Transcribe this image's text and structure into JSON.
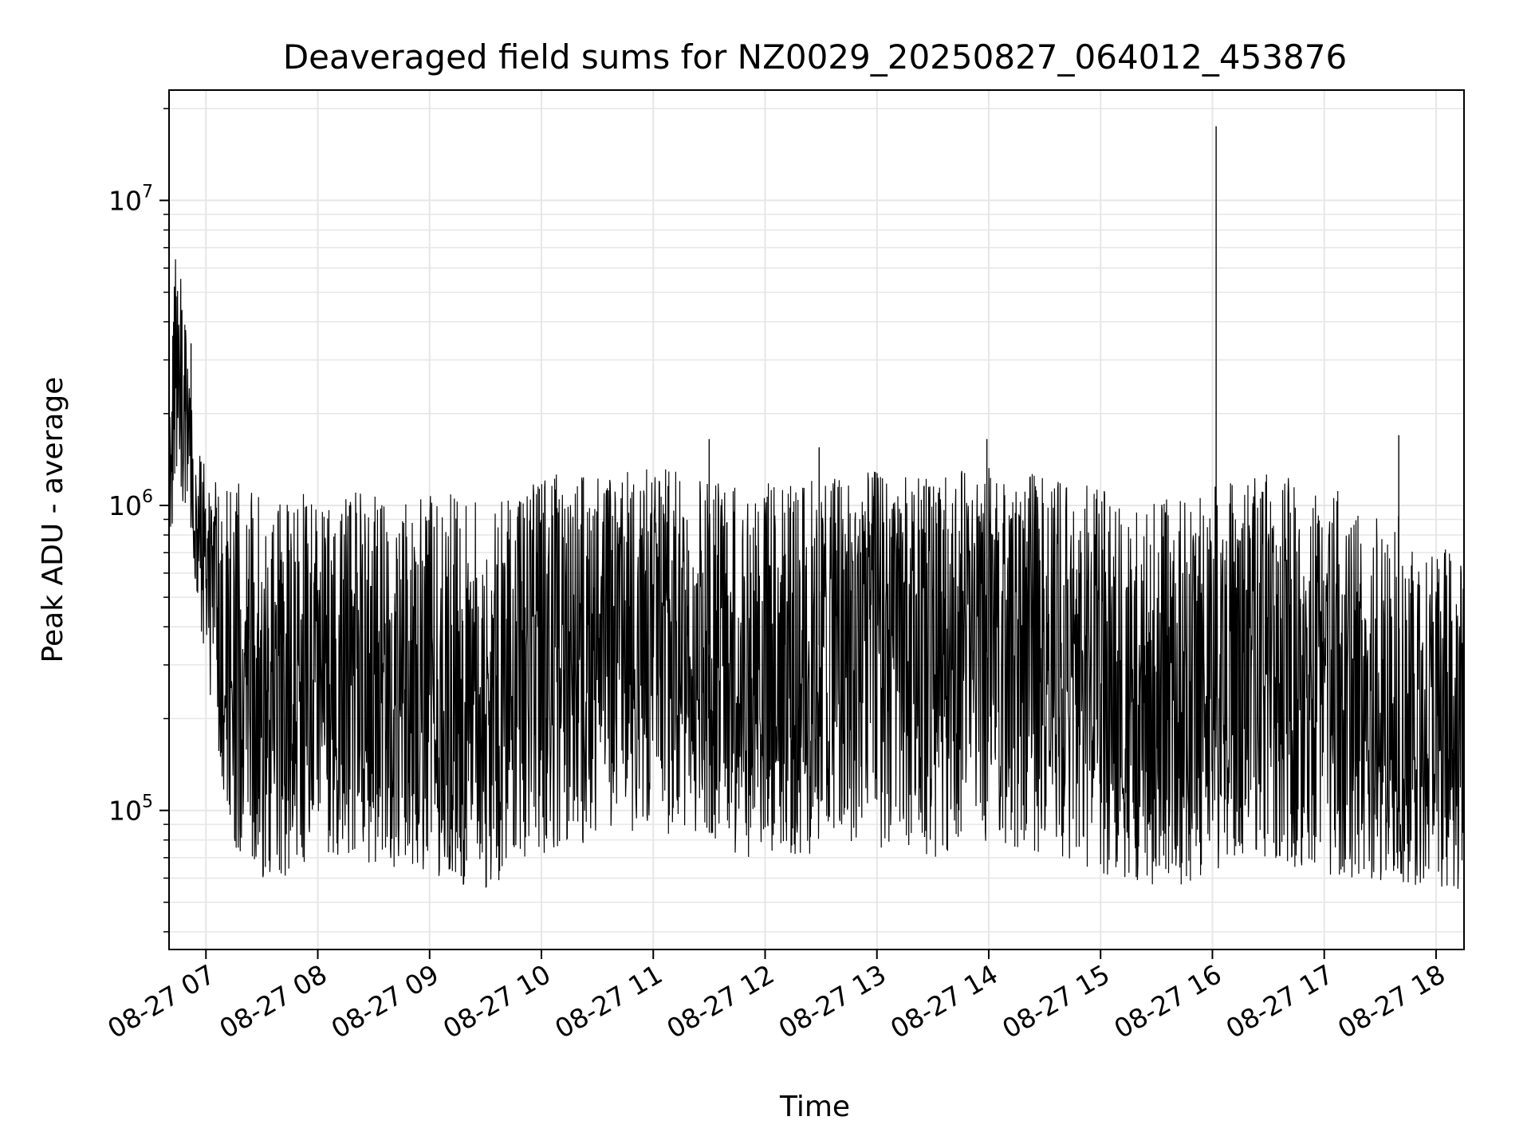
{
  "chart_data": {
    "type": "line",
    "title": "Deaveraged field sums for NZ0029_20250827_064012_453876",
    "xlabel": "Time",
    "ylabel": "Peak ADU - average",
    "x_scale": "time",
    "y_scale": "log",
    "xlim": [
      "2025-08-27T06:40:12",
      "2025-08-27T18:15:00"
    ],
    "ylim": [
      35000,
      23000000
    ],
    "grid": true,
    "line_color": "#000000",
    "grid_color": "#e6e6e6",
    "x_ticks": [
      {
        "value": "2025-08-27T07:00:00",
        "label": "08-27 07"
      },
      {
        "value": "2025-08-27T08:00:00",
        "label": "08-27 08"
      },
      {
        "value": "2025-08-27T09:00:00",
        "label": "08-27 09"
      },
      {
        "value": "2025-08-27T10:00:00",
        "label": "08-27 10"
      },
      {
        "value": "2025-08-27T11:00:00",
        "label": "08-27 11"
      },
      {
        "value": "2025-08-27T12:00:00",
        "label": "08-27 12"
      },
      {
        "value": "2025-08-27T13:00:00",
        "label": "08-27 13"
      },
      {
        "value": "2025-08-27T14:00:00",
        "label": "08-27 14"
      },
      {
        "value": "2025-08-27T15:00:00",
        "label": "08-27 15"
      },
      {
        "value": "2025-08-27T16:00:00",
        "label": "08-27 16"
      },
      {
        "value": "2025-08-27T17:00:00",
        "label": "08-27 17"
      },
      {
        "value": "2025-08-27T18:00:00",
        "label": "08-27 18"
      }
    ],
    "y_ticks": [
      {
        "value": 100000,
        "base": "10",
        "exp": "5"
      },
      {
        "value": 1000000,
        "base": "10",
        "exp": "6"
      },
      {
        "value": 10000000,
        "base": "10",
        "exp": "7"
      }
    ],
    "series": [
      {
        "x": [
          "2025-08-27T06:40:12",
          "2025-08-27T06:44:00",
          "2025-08-27T06:48:00",
          "2025-08-27T06:52:00",
          "2025-08-27T06:56:00",
          "2025-08-27T07:00:00",
          "2025-08-27T07:04:00",
          "2025-08-27T07:08:00",
          "2025-08-27T07:12:00",
          "2025-08-27T07:16:00",
          "2025-08-27T07:20:00",
          "2025-08-27T07:25:00",
          "2025-08-27T07:30:00",
          "2025-08-27T07:35:00",
          "2025-08-27T07:40:00",
          "2025-08-27T07:45:00",
          "2025-08-27T07:50:00",
          "2025-08-27T07:55:00",
          "2025-08-27T08:00:00",
          "2025-08-27T08:10:00",
          "2025-08-27T08:20:00",
          "2025-08-27T08:30:00",
          "2025-08-27T08:40:00",
          "2025-08-27T08:50:00",
          "2025-08-27T09:00:00",
          "2025-08-27T09:10:00",
          "2025-08-27T09:20:00",
          "2025-08-27T09:30:00",
          "2025-08-27T09:40:00",
          "2025-08-27T09:50:00",
          "2025-08-27T10:00:00",
          "2025-08-27T10:15:00",
          "2025-08-27T10:30:00",
          "2025-08-27T10:45:00",
          "2025-08-27T11:00:00",
          "2025-08-27T11:15:00",
          "2025-08-27T11:30:00",
          "2025-08-27T11:45:00",
          "2025-08-27T12:00:00",
          "2025-08-27T12:15:00",
          "2025-08-27T12:30:00",
          "2025-08-27T12:45:00",
          "2025-08-27T13:00:00",
          "2025-08-27T13:15:00",
          "2025-08-27T13:30:00",
          "2025-08-27T13:45:00",
          "2025-08-27T14:00:00",
          "2025-08-27T14:15:00",
          "2025-08-27T14:30:00",
          "2025-08-27T14:45:00",
          "2025-08-27T15:00:00",
          "2025-08-27T15:15:00",
          "2025-08-27T15:30:00",
          "2025-08-27T15:45:00",
          "2025-08-27T16:00:00",
          "2025-08-27T16:15:00",
          "2025-08-27T16:30:00",
          "2025-08-27T16:45:00",
          "2025-08-27T17:00:00",
          "2025-08-27T17:15:00",
          "2025-08-27T17:30:00",
          "2025-08-27T17:45:00",
          "2025-08-27T18:00:00",
          "2025-08-27T18:15:00"
        ],
        "y": [
          1200000,
          3000000,
          2000000,
          1300000,
          900000,
          700000,
          550000,
          450000,
          350000,
          300000,
          250000,
          230000,
          220000,
          200000,
          190000,
          200000,
          210000,
          220000,
          230000,
          240000,
          250000,
          250000,
          240000,
          230000,
          230000,
          240000,
          220000,
          210000,
          230000,
          260000,
          300000,
          320000,
          350000,
          380000,
          400000,
          380000,
          350000,
          330000,
          320000,
          330000,
          350000,
          370000,
          380000,
          360000,
          350000,
          380000,
          400000,
          380000,
          350000,
          320000,
          260000,
          220000,
          190000,
          180000,
          230000,
          280000,
          300000,
          270000,
          220000,
          200000,
          180000,
          170000,
          160000,
          150000
        ],
        "y_low": [
          700000,
          1100000,
          900000,
          600000,
          450000,
          300000,
          200000,
          120000,
          90000,
          75000,
          70000,
          65000,
          60000,
          55000,
          55000,
          60000,
          65000,
          70000,
          75000,
          70000,
          70000,
          65000,
          65000,
          60000,
          60000,
          60000,
          55000,
          55000,
          60000,
          65000,
          70000,
          75000,
          80000,
          80000,
          85000,
          80000,
          75000,
          70000,
          70000,
          70000,
          72000,
          75000,
          75000,
          72000,
          70000,
          75000,
          78000,
          75000,
          70000,
          68000,
          62000,
          58000,
          55000,
          55000,
          60000,
          65000,
          70000,
          65000,
          62000,
          60000,
          58000,
          56000,
          55000,
          55000
        ],
        "y_high": [
          1700000,
          7800000,
          4500000,
          2500000,
          1800000,
          1300000,
          1200000,
          1200000,
          1200000,
          1200000,
          1150000,
          1100000,
          1100000,
          1050000,
          1050000,
          1100000,
          1100000,
          1100000,
          1100000,
          1150000,
          1150000,
          1150000,
          1100000,
          1100000,
          1100000,
          1100000,
          1050000,
          1050000,
          1100000,
          1150000,
          1250000,
          1300000,
          1300000,
          1300000,
          1350000,
          1300000,
          1250000,
          1200000,
          1200000,
          1200000,
          1250000,
          1250000,
          1300000,
          1250000,
          1250000,
          1300000,
          1350000,
          1300000,
          1250000,
          1200000,
          1150000,
          1100000,
          1050000,
          1050000,
          1150000,
          1250000,
          1300000,
          1250000,
          1150000,
          1100000,
          1000000,
          900000,
          800000,
          650000
        ],
        "spikes": [
          {
            "x": "2025-08-27T06:52:00",
            "y": 3400000
          },
          {
            "x": "2025-08-27T11:30:00",
            "y": 1650000
          },
          {
            "x": "2025-08-27T12:29:00",
            "y": 1550000
          },
          {
            "x": "2025-08-27T13:59:00",
            "y": 1650000
          },
          {
            "x": "2025-08-27T16:02:00",
            "y": 17500000
          },
          {
            "x": "2025-08-27T17:40:00",
            "y": 1700000
          }
        ]
      }
    ]
  }
}
